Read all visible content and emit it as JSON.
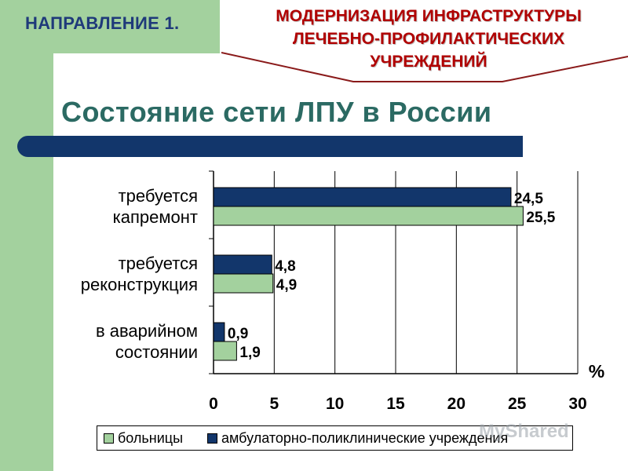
{
  "header": {
    "section_label": "НАПРАВЛЕНИЕ 1.",
    "banner_lines": [
      "МОДЕРНИЗАЦИЯ ИНФРАСТРУКТУРЫ",
      "ЛЕЧЕБНО-ПРОФИЛАКТИЧЕСКИХ",
      "УЧРЕЖДЕНИЙ"
    ]
  },
  "page": {
    "title": "Состояние сети ЛПУ в России"
  },
  "colors": {
    "accent_green": "#a3d19e",
    "navy": "#12366b",
    "title_teal": "#2b6a63",
    "banner_red": "#b00000"
  },
  "chart_data": {
    "type": "bar",
    "orientation": "horizontal",
    "categories": [
      [
        "требуется",
        "капремонт"
      ],
      [
        "требуется",
        "реконструкция"
      ],
      [
        "в аварийном",
        "состоянии"
      ]
    ],
    "series": [
      {
        "name": "амбулаторно-поликлинические учреждения",
        "color": "#12366b",
        "values": [
          24.5,
          4.8,
          0.9
        ],
        "labels": [
          "24,5",
          "4,8",
          "0,9"
        ]
      },
      {
        "name": "больницы",
        "color": "#a3d19e",
        "values": [
          25.5,
          4.9,
          1.9
        ],
        "labels": [
          "25,5",
          "4,9",
          "1,9"
        ]
      }
    ],
    "xlim": [
      0,
      30
    ],
    "xticks": [
      "0",
      "5",
      "10",
      "15",
      "20",
      "25",
      "30"
    ],
    "xlabel": "%",
    "grid": true,
    "legend_position": "bottom",
    "legend_order": [
      "больницы",
      "амбулаторно-поликлинические учреждения"
    ]
  },
  "watermark": "MyShared"
}
